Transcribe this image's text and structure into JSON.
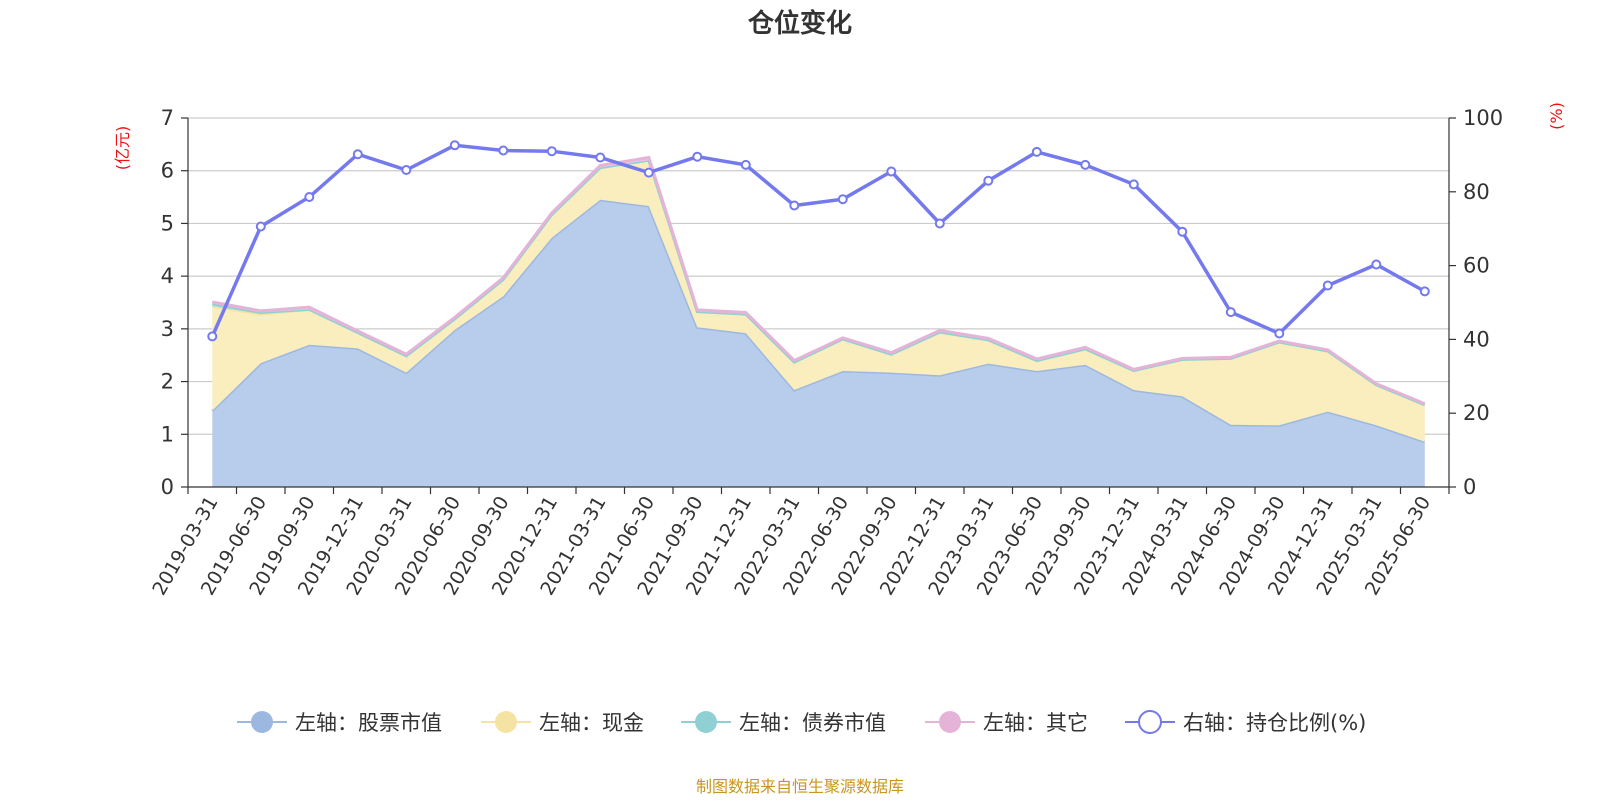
{
  "chart_data": {
    "type": "area",
    "title": "仓位变化",
    "source": "制图数据来自恒生聚源数据库",
    "left_axis_unit": "(亿元)",
    "right_axis_unit": "(%)",
    "left_ylim": [
      0,
      7
    ],
    "left_ticks": [
      "0",
      "1",
      "2",
      "3",
      "4",
      "5",
      "6",
      "7"
    ],
    "right_ylim": [
      0,
      100
    ],
    "right_ticks": [
      "0",
      "20",
      "40",
      "60",
      "80",
      "100"
    ],
    "grid": true,
    "legend_position": "bottom",
    "x": [
      "2019-03-31",
      "2019-06-30",
      "2019-09-30",
      "2019-12-31",
      "2020-03-31",
      "2020-06-30",
      "2020-09-30",
      "2020-12-31",
      "2021-03-31",
      "2021-06-30",
      "2021-09-30",
      "2021-12-31",
      "2022-03-31",
      "2022-06-30",
      "2022-09-30",
      "2022-12-31",
      "2023-03-31",
      "2023-06-30",
      "2023-09-30",
      "2023-12-31",
      "2024-03-31",
      "2024-06-30",
      "2024-09-30",
      "2024-12-31",
      "2025-03-31",
      "2025-06-30"
    ],
    "series": [
      {
        "name": "左轴：股票市值",
        "axis": "left",
        "color": "#9db8e0",
        "fill": "#b8cceb",
        "values": [
          1.45,
          2.35,
          2.7,
          2.63,
          2.17,
          2.98,
          3.62,
          4.73,
          5.45,
          5.33,
          3.03,
          2.92,
          1.84,
          2.2,
          2.17,
          2.12,
          2.34,
          2.2,
          2.32,
          1.84,
          1.72,
          1.18,
          1.17,
          1.43,
          1.17,
          0.86
        ]
      },
      {
        "name": "左轴：现金",
        "axis": "left",
        "color": "#f4e3a3",
        "fill": "#faedbe",
        "values": [
          1.98,
          0.93,
          0.67,
          0.3,
          0.32,
          0.21,
          0.32,
          0.44,
          0.61,
          0.87,
          0.3,
          0.36,
          0.53,
          0.61,
          0.35,
          0.82,
          0.45,
          0.2,
          0.3,
          0.37,
          0.7,
          1.26,
          1.58,
          1.15,
          0.77,
          0.7
        ]
      },
      {
        "name": "左轴：债券市值",
        "axis": "left",
        "color": "#8fd0d4",
        "fill": "#a9dcdf",
        "values": [
          0.05,
          0.03,
          0,
          0,
          0,
          0,
          0,
          0,
          0,
          0,
          0,
          0,
          0,
          0,
          0,
          0,
          0,
          0,
          0,
          0,
          0,
          0,
          0,
          0,
          0,
          0
        ]
      },
      {
        "name": "左轴：其它",
        "axis": "left",
        "color": "#e6b3d8",
        "fill": "#edc6e2",
        "values": [
          0.03,
          0.03,
          0.04,
          0.03,
          0.03,
          0.03,
          0.03,
          0.03,
          0.04,
          0.05,
          0.03,
          0.03,
          0.03,
          0.02,
          0.03,
          0.03,
          0.03,
          0.03,
          0.03,
          0.02,
          0.02,
          0.02,
          0.02,
          0.02,
          0.02,
          0.02
        ]
      },
      {
        "name": "右轴：持仓比例(%)",
        "axis": "right",
        "color": "#7479ee",
        "values": [
          40.8,
          70.6,
          78.6,
          90.2,
          85.9,
          92.6,
          91.2,
          91.0,
          89.3,
          85.2,
          89.5,
          87.3,
          76.3,
          78.0,
          85.5,
          71.4,
          83.0,
          90.8,
          87.3,
          82.0,
          69.2,
          47.4,
          41.6,
          54.6,
          60.3,
          53.0
        ]
      }
    ]
  }
}
